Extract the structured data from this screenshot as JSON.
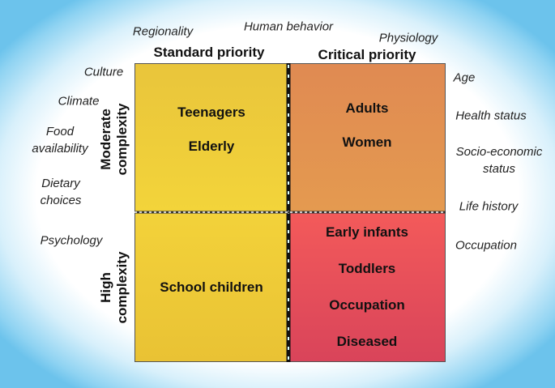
{
  "columns": [
    "Standard priority",
    "Critical priority"
  ],
  "rows": [
    "Moderate complexity",
    "High complexity"
  ],
  "quadrants": [
    {
      "items": [
        "Teenagers",
        "Elderly"
      ]
    },
    {
      "items": [
        "Adults",
        "Women"
      ]
    },
    {
      "items": [
        "School children"
      ]
    },
    {
      "items": [
        "Early infants",
        "Toddlers",
        "Occupation",
        "Diseased"
      ]
    }
  ],
  "factors": [
    "Regionality",
    "Human behavior",
    "Physiology",
    "Culture",
    "Climate",
    "Food availability",
    "Dietary choices",
    "Psychology",
    "Age",
    "Health status",
    "Socio-economic status",
    "Life history",
    "Occupation"
  ]
}
